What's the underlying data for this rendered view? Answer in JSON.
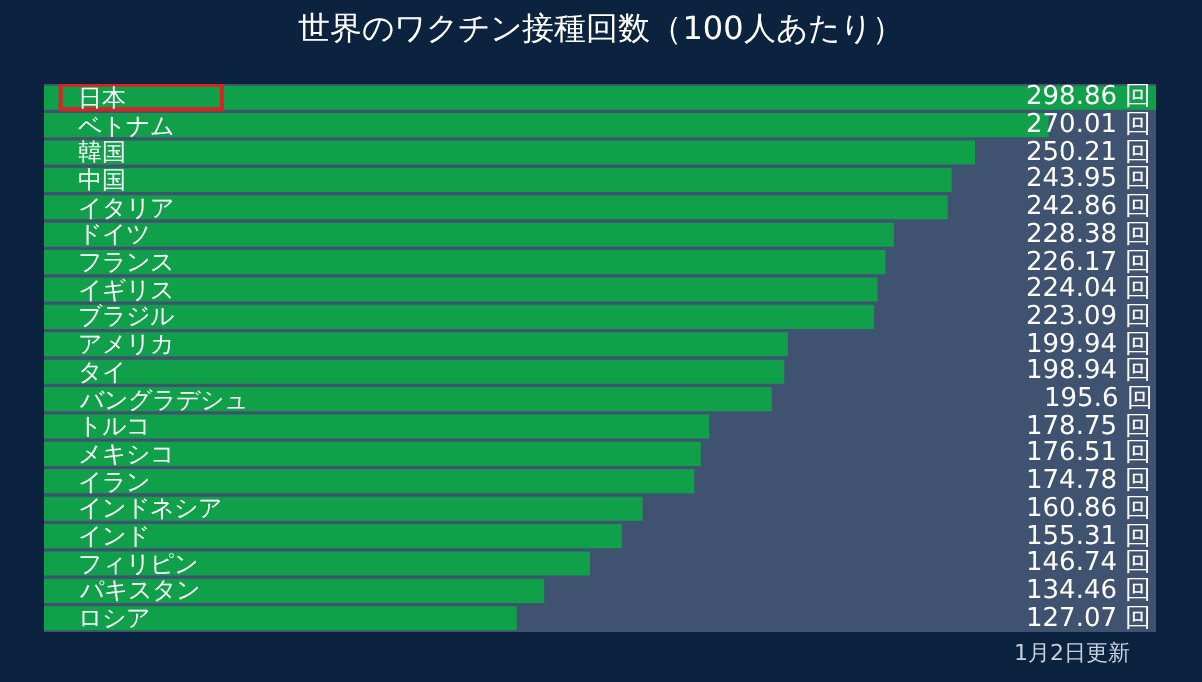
{
  "chart_data": {
    "type": "bar",
    "orientation": "horizontal",
    "title": "世界のワクチン接種回数（100人あたり）",
    "categories": [
      "日本",
      "ベトナム",
      "韓国",
      "中国",
      "イタリア",
      "ドイツ",
      "フランス",
      "イギリス",
      "ブラジル",
      "アメリカ",
      "タイ",
      "バングラデシュ",
      "トルコ",
      "メキシコ",
      "イラン",
      "インドネシア",
      "インド",
      "フィリピン",
      "パキスタン",
      "ロシア"
    ],
    "values": [
      298.86,
      270.01,
      250.21,
      243.95,
      242.86,
      228.38,
      226.17,
      224.04,
      223.09,
      199.94,
      198.94,
      195.6,
      178.75,
      176.51,
      174.78,
      160.86,
      155.31,
      146.74,
      134.46,
      127.07
    ],
    "value_labels": [
      "298.86 回",
      "270.01 回",
      "250.21 回",
      "243.95 回",
      "242.86 回",
      "228.38 回",
      "226.17 回",
      "224.04 回",
      "223.09 回",
      "199.94 回",
      "198.94 回",
      "195.6 回",
      "178.75 回",
      "176.51 回",
      "174.78 回",
      "160.86 回",
      "155.31 回",
      "146.74 回",
      "134.46 回",
      "127.07 回"
    ],
    "color": "#10a04a",
    "annotations": [
      "1月2日更新"
    ],
    "grid": false,
    "legend": false
  }
}
